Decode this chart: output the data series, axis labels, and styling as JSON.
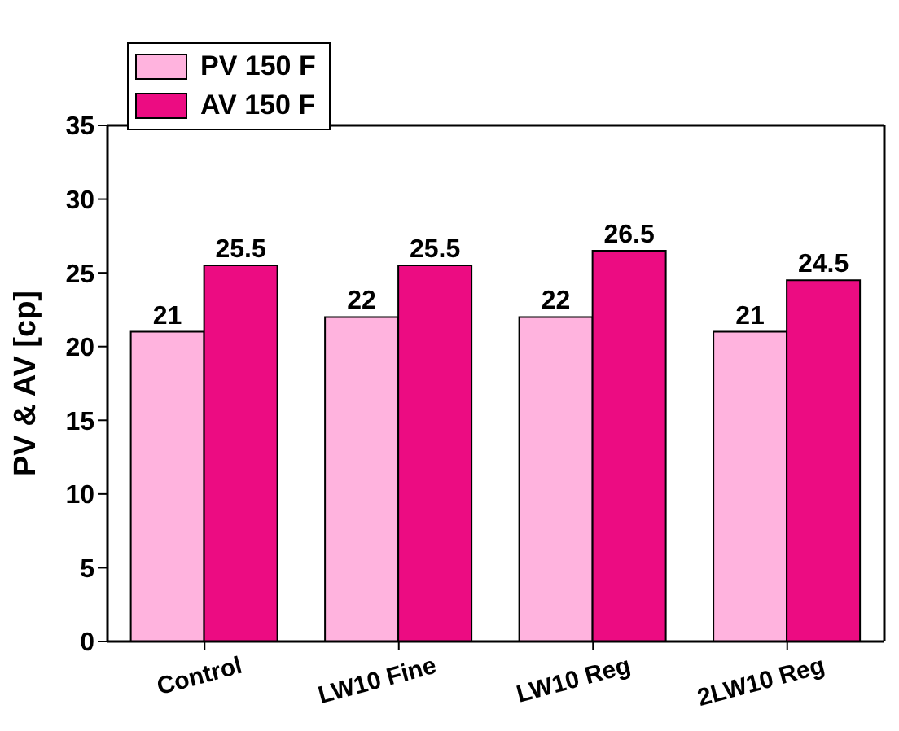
{
  "chart_data": {
    "type": "bar",
    "ylabel": "PV & AV [cp]",
    "categories": [
      "Control",
      "LW10 Fine",
      "LW10 Reg",
      "2LW10 Reg"
    ],
    "series": [
      {
        "name": "PV 150 F",
        "color": "#ffb3de",
        "values": [
          21,
          22,
          22,
          21
        ]
      },
      {
        "name": "AV 150 F",
        "color": "#ec0c82",
        "values": [
          25.5,
          25.5,
          26.5,
          24.5
        ]
      }
    ],
    "ylim": [
      0,
      35
    ],
    "yticks": [
      0,
      5,
      10,
      15,
      20,
      25,
      30,
      35
    ],
    "data_labels": true,
    "legend": "top left"
  }
}
